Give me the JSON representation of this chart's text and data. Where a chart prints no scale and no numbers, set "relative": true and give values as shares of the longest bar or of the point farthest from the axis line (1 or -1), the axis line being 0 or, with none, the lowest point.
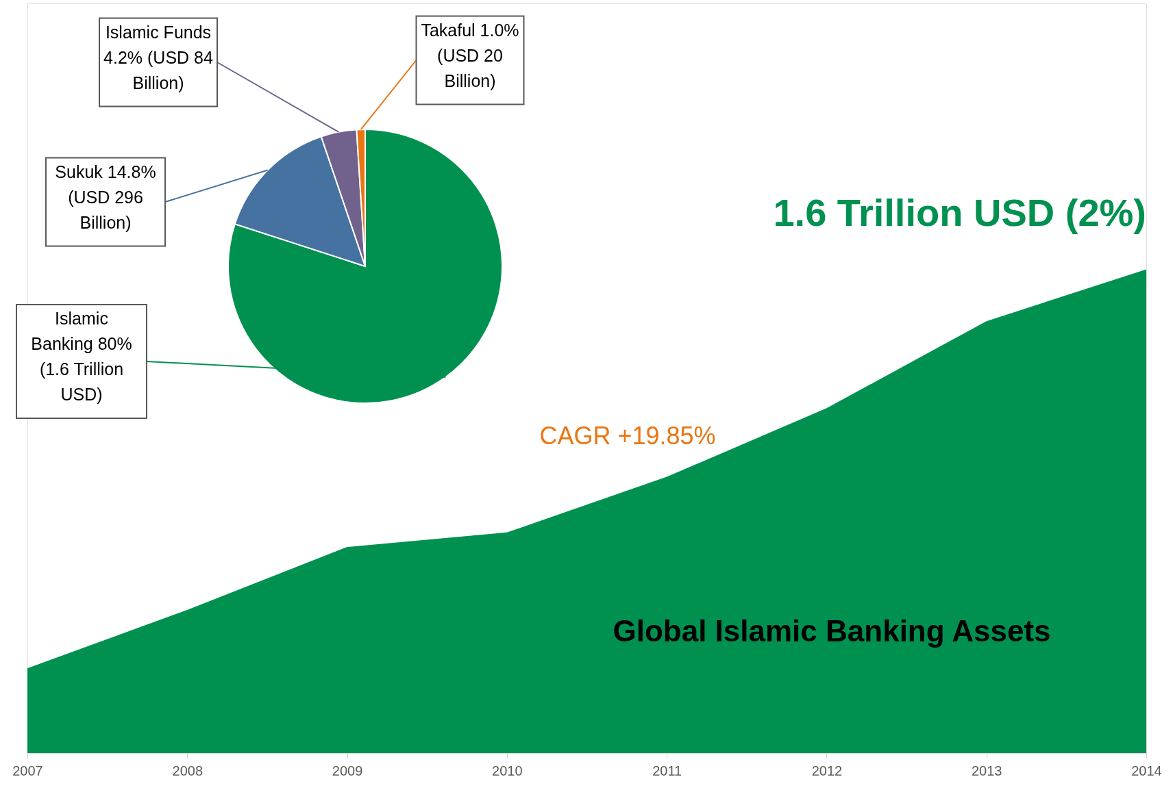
{
  "chart_data": [
    {
      "type": "area",
      "relative": true,
      "categories": [
        "2007",
        "2008",
        "2009",
        "2010",
        "2011",
        "2012",
        "2013",
        "2014"
      ],
      "series": [
        {
          "color": "#009150",
          "values": [
            0.175,
            0.296,
            0.426,
            0.456,
            0.571,
            0.713,
            0.893,
            1.0
          ]
        }
      ],
      "annotations": [
        {
          "text": "1.6 Trillion USD (2%)",
          "x": "2014",
          "y": 1.0
        },
        "CAGR +19.85%",
        "Global Islamic Banking Assets"
      ],
      "grid": false
    },
    {
      "type": "pie",
      "categories": [
        "Islamic Banking",
        "Sukuk",
        "Islamic Funds",
        "Takaful"
      ],
      "values": [
        80,
        14.8,
        4.2,
        1.0
      ],
      "colors": [
        "#009150",
        "#4672a1",
        "#71618d",
        "#ea7612"
      ],
      "value_labels": [
        "80% (1.6 Trillion USD)",
        "14.8% (USD 296 Billion)",
        "4.2% (USD 84 Billion)",
        "1.0% (USD 20 Billion)"
      ],
      "legend": false
    }
  ]
}
